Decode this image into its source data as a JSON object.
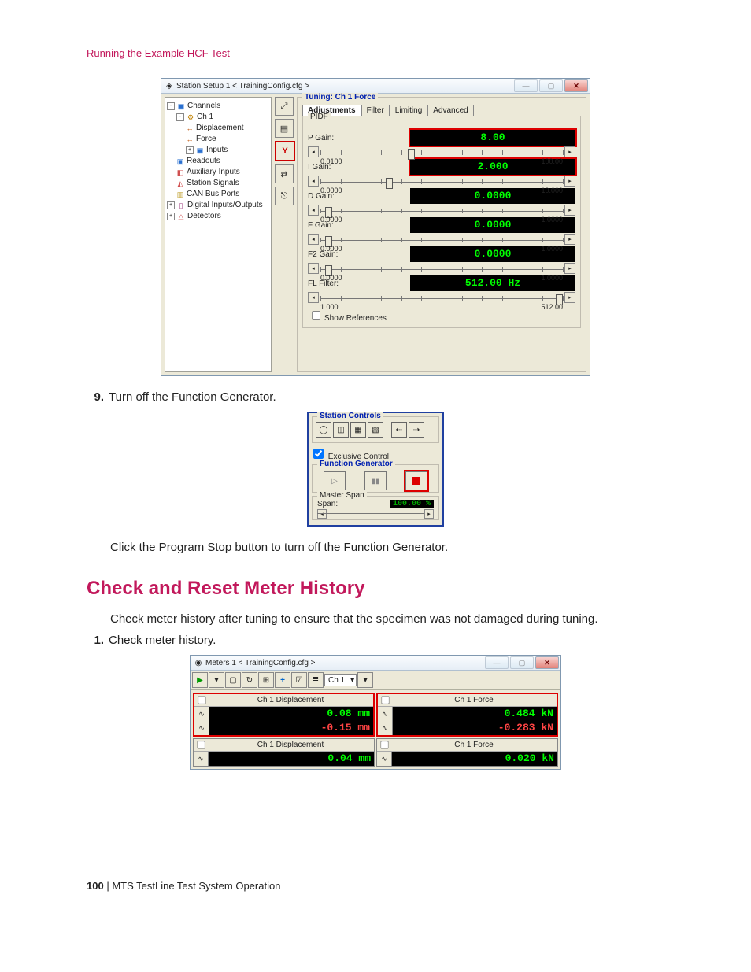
{
  "header": {
    "running": "Running the Example HCF Test"
  },
  "station": {
    "title": "Station Setup 1 < TrainingConfig.cfg >",
    "tree": {
      "root": "Channels",
      "ch1": "Ch 1",
      "displacement": "Displacement",
      "force": "Force",
      "inputs": "Inputs",
      "readouts": "Readouts",
      "aux": "Auxiliary Inputs",
      "signals": "Station Signals",
      "canbus": "CAN Bus Ports",
      "dio": "Digital Inputs/Outputs",
      "detectors": "Detectors"
    },
    "tuning_title": "Tuning:  Ch 1 Force",
    "tabs": {
      "adjustments": "Adjustments",
      "filter": "Filter",
      "limiting": "Limiting",
      "advanced": "Advanced"
    },
    "pidf_label": "PIDF",
    "gains": {
      "p": {
        "label": "P Gain:",
        "value": "8.00",
        "min": "0.0100",
        "max": "100.00",
        "thumb": 0.36,
        "hl": true
      },
      "i": {
        "label": "I Gain:",
        "value": "2.000",
        "min": "0.0000",
        "max": "10.000",
        "thumb": 0.27,
        "hl": true
      },
      "d": {
        "label": "D Gain:",
        "value": "0.0000",
        "min": "0.0000",
        "max": "1.0000",
        "thumb": 0.02,
        "hl": false
      },
      "f": {
        "label": "F Gain:",
        "value": "0.0000",
        "min": "0.0000",
        "max": "1.0000",
        "thumb": 0.02,
        "hl": false
      },
      "f2": {
        "label": "F2 Gain:",
        "value": "0.0000",
        "min": "0.0000",
        "max": "1.0000",
        "thumb": 0.02,
        "hl": false
      },
      "fl": {
        "label": "FL Filter:",
        "value": "512.00  Hz",
        "min": "1.000",
        "max": "512.00",
        "thumb": 0.97,
        "hl": false
      }
    },
    "show_refs": "Show References"
  },
  "step9": {
    "num": "9.",
    "text": "Turn off the Function Generator."
  },
  "stationControls": {
    "title": "Station Controls",
    "exclusive": "Exclusive Control",
    "fg_title": "Function Generator",
    "master_span": "Master Span",
    "span_label": "Span:",
    "span_value": "100.00 %"
  },
  "clickStop": "Click the Program Stop button to turn off the Function Generator.",
  "h2": "Check and Reset Meter History",
  "checkIntro": "Check meter history after tuning to ensure that the specimen was not damaged during tuning.",
  "step1": {
    "num": "1.",
    "text": "Check meter history."
  },
  "meters": {
    "title": "Meters 1 < TrainingConfig.cfg >",
    "sel": "Ch 1",
    "boxes": {
      "a": {
        "title": "Ch 1 Displacement",
        "v1": "0.08 mm",
        "v2": "-0.15 mm"
      },
      "b": {
        "title": "Ch 1 Force",
        "v1": "0.484 kN",
        "v2": "-0.283 kN"
      },
      "c": {
        "title": "Ch 1 Displacement",
        "v3": "0.04 mm"
      },
      "d": {
        "title": "Ch 1 Force",
        "v3": "0.020 kN"
      }
    }
  },
  "footer": {
    "page": "100",
    "sep": " | ",
    "doc": "MTS TestLine Test System Operation"
  }
}
